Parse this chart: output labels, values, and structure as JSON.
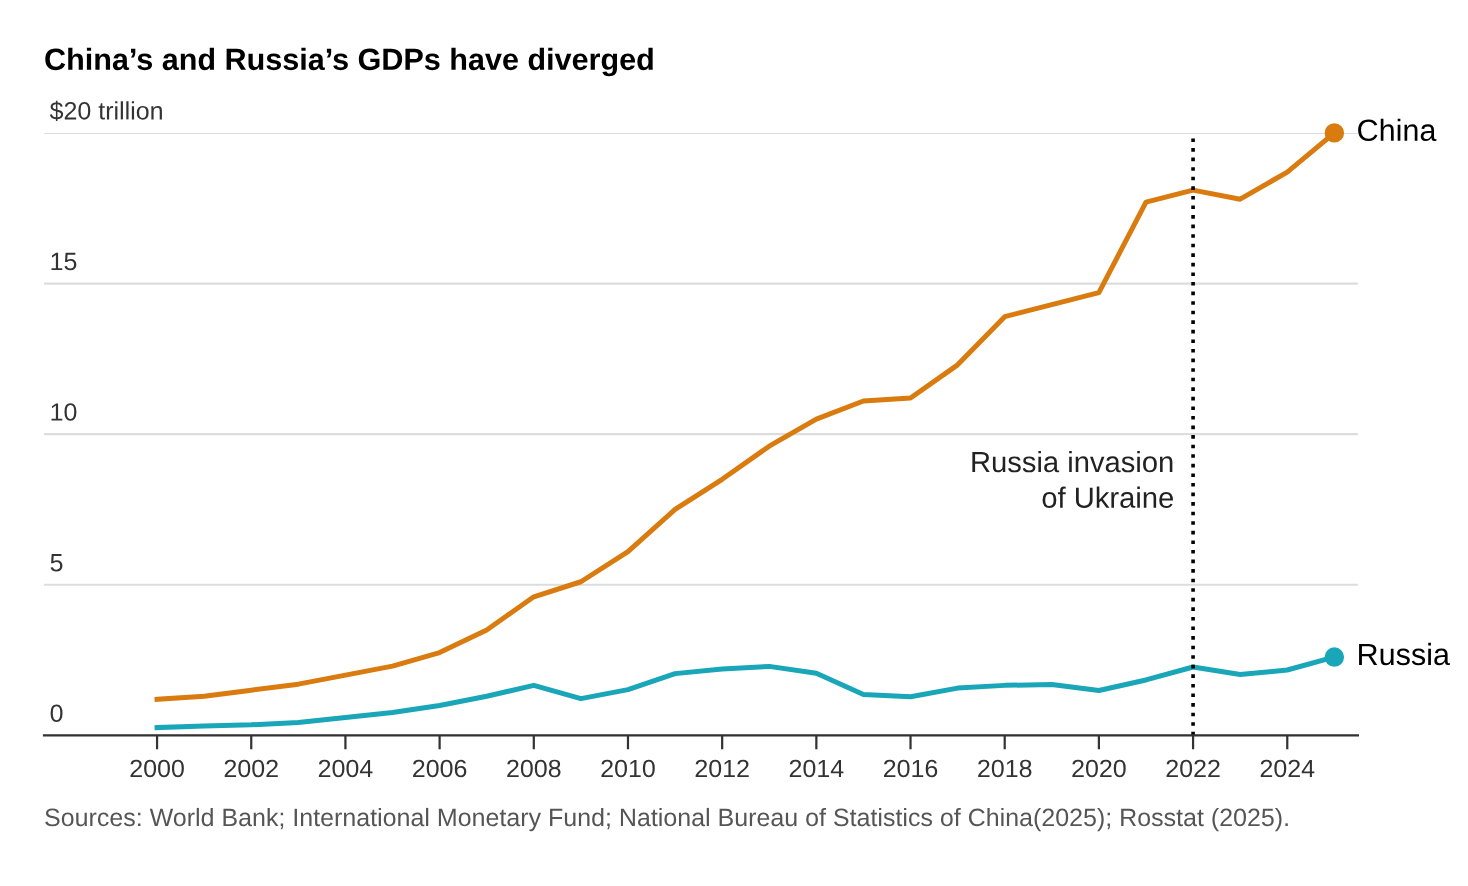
{
  "chart_data": {
    "type": "line",
    "title": "China’s and Russia’s GDPs have diverged",
    "x": [
      2000,
      2001,
      2002,
      2003,
      2004,
      2005,
      2006,
      2007,
      2008,
      2009,
      2010,
      2011,
      2012,
      2013,
      2014,
      2015,
      2016,
      2017,
      2018,
      2019,
      2020,
      2021,
      2022,
      2023,
      2024,
      2025
    ],
    "series": [
      {
        "name": "China",
        "color": "#d97b0e",
        "values": [
          1.2,
          1.3,
          1.5,
          1.7,
          2.0,
          2.3,
          2.75,
          3.5,
          4.6,
          5.1,
          6.1,
          7.5,
          8.5,
          9.6,
          10.5,
          11.1,
          11.2,
          12.3,
          13.9,
          14.3,
          14.7,
          17.7,
          18.1,
          17.8,
          18.7,
          20.0
        ]
      },
      {
        "name": "Russia",
        "color": "#19a6b8",
        "values": [
          0.26,
          0.31,
          0.35,
          0.43,
          0.59,
          0.76,
          0.99,
          1.3,
          1.66,
          1.22,
          1.52,
          2.05,
          2.2,
          2.29,
          2.06,
          1.36,
          1.28,
          1.57,
          1.66,
          1.69,
          1.49,
          1.84,
          2.27,
          2.02,
          2.17,
          2.6
        ]
      }
    ],
    "xlim": [
      1997.6,
      2025.5
    ],
    "xticks": [
      2000,
      2002,
      2004,
      2006,
      2008,
      2010,
      2012,
      2014,
      2016,
      2018,
      2020,
      2022,
      2024
    ],
    "ylim": [
      0,
      20
    ],
    "yticks": [
      0,
      5,
      10,
      15,
      {
        "value": 20,
        "label": "$20 trillion"
      }
    ],
    "grid": "y",
    "legend": false,
    "line_style": "solid",
    "ref_lines": [
      {
        "axis": "x",
        "value": 2022,
        "label": "Russia invasion\nof Ukraine",
        "color": "#000000",
        "line_style": "dotted"
      }
    ],
    "annotations": [
      "Sources: World Bank; International Monetary Fund; National Bureau of Statistics of China(2025); Rosstat (2025)."
    ]
  }
}
